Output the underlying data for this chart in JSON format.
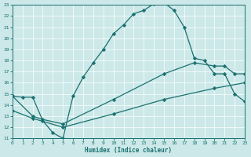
{
  "xlabel": "Humidex (Indice chaleur)",
  "bg_color": "#cce8e8",
  "line_color": "#1a7070",
  "grid_color": "#ffffff",
  "xlim": [
    0,
    23
  ],
  "ylim": [
    11,
    23
  ],
  "yticks": [
    11,
    12,
    13,
    14,
    15,
    16,
    17,
    18,
    19,
    20,
    21,
    22,
    23
  ],
  "xticks": [
    0,
    1,
    2,
    3,
    4,
    5,
    6,
    7,
    8,
    9,
    10,
    11,
    12,
    13,
    14,
    15,
    16,
    17,
    18,
    19,
    20,
    21,
    22,
    23
  ],
  "curve1_x": [
    0,
    1,
    2,
    3,
    4,
    5,
    6,
    7,
    8,
    9,
    10,
    11,
    12,
    13,
    14,
    15,
    16,
    17,
    18,
    19,
    20,
    21,
    22,
    23
  ],
  "curve1_y": [
    14.8,
    14.7,
    14.7,
    12.6,
    11.5,
    11.0,
    14.8,
    16.5,
    17.8,
    19.0,
    20.4,
    21.2,
    22.2,
    22.5,
    23.1,
    23.2,
    22.5,
    21.0,
    18.2,
    18.0,
    16.8,
    16.8,
    15.0,
    14.3
  ],
  "curve2_x": [
    0,
    2,
    3,
    5,
    10,
    15,
    18,
    20,
    21,
    22,
    23
  ],
  "curve2_y": [
    14.8,
    13.0,
    12.7,
    12.3,
    14.5,
    16.8,
    17.8,
    17.5,
    17.5,
    16.8,
    16.8
  ],
  "curve3_x": [
    0,
    2,
    5,
    10,
    15,
    20,
    23
  ],
  "curve3_y": [
    13.5,
    12.8,
    12.0,
    13.2,
    14.5,
    15.5,
    16.0
  ]
}
